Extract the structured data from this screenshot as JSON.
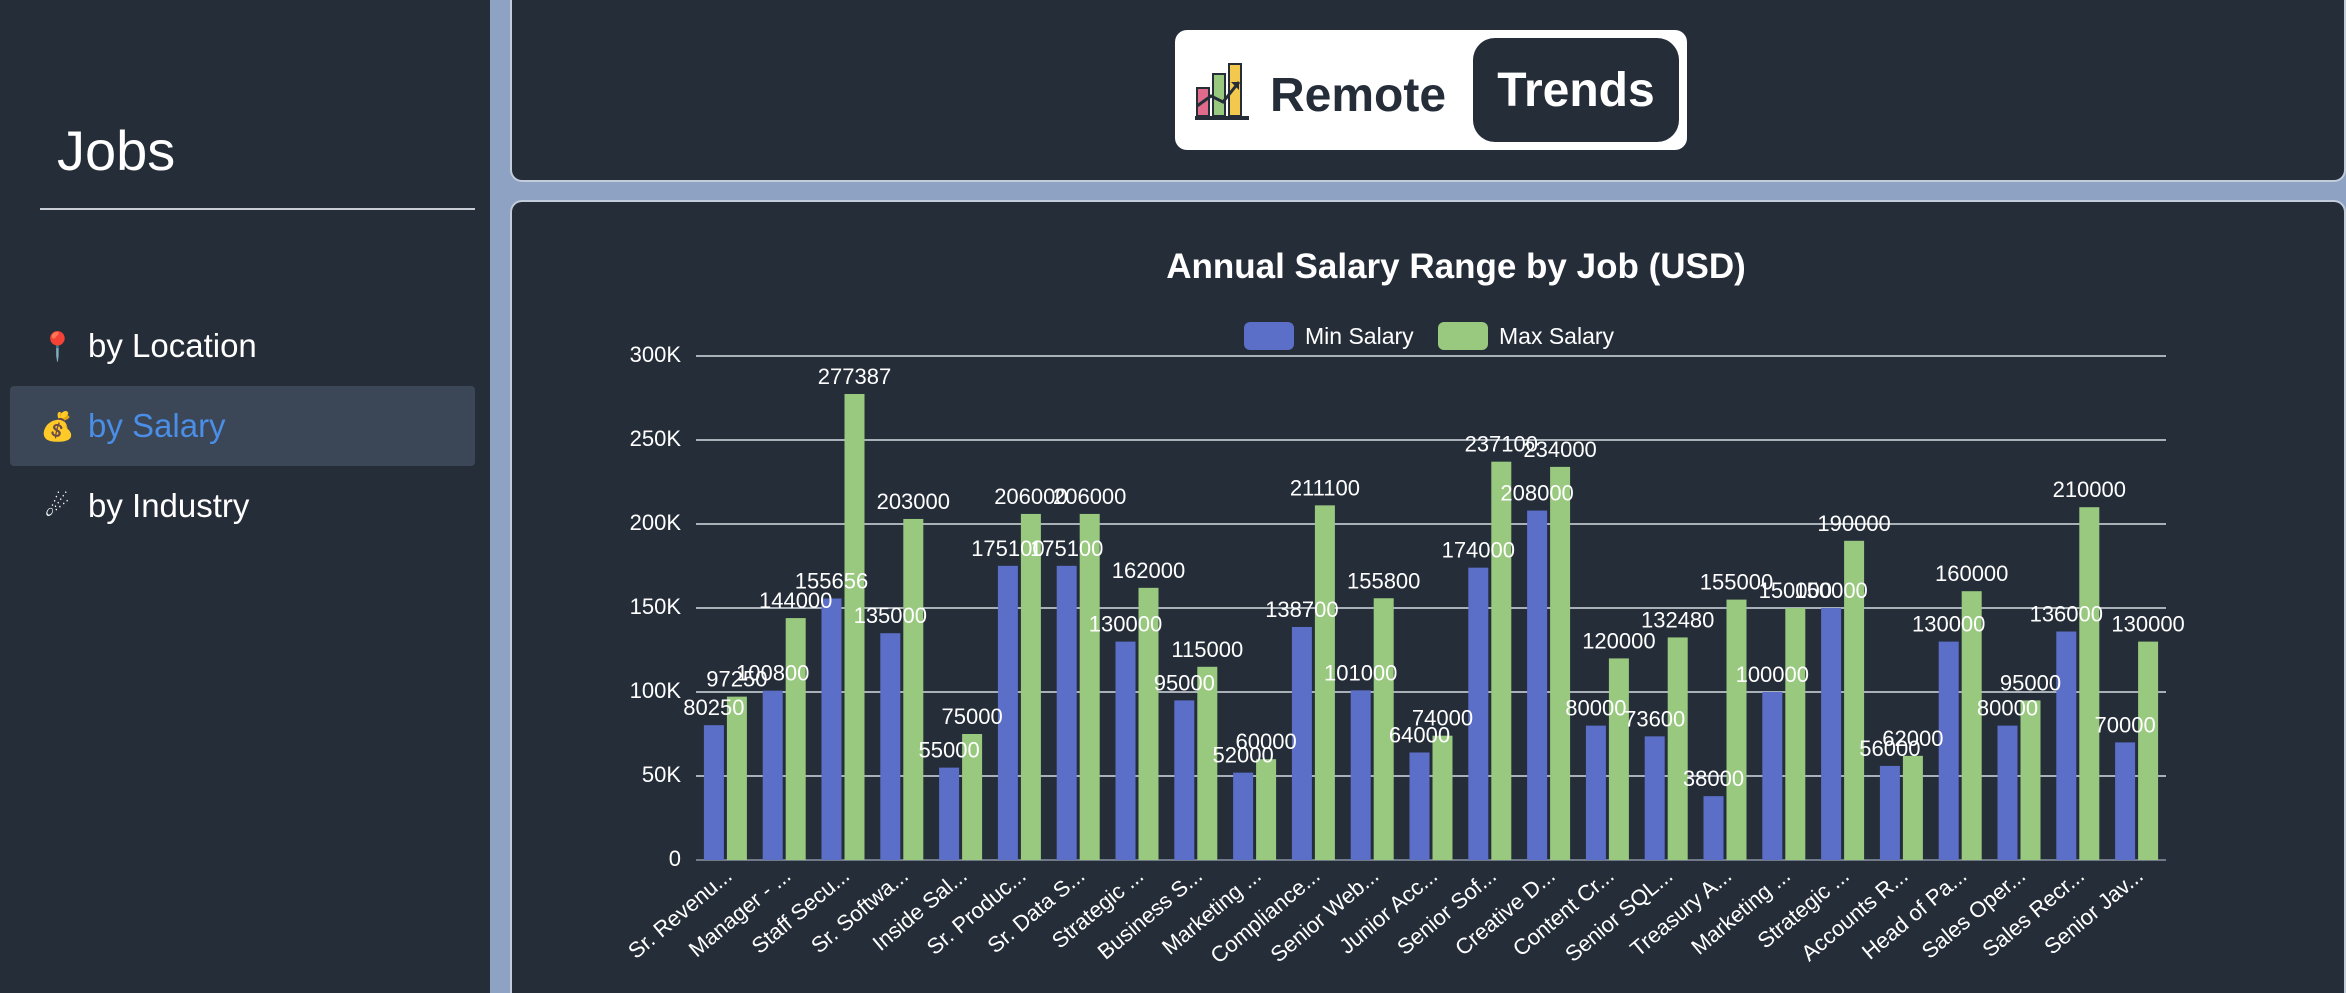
{
  "sidebar": {
    "title": "Jobs",
    "items": [
      {
        "icon": "📍",
        "icon_name": "pin-icon",
        "label": "by Location",
        "active": false
      },
      {
        "icon": "💰",
        "icon_name": "money-bag-icon",
        "label": "by Salary",
        "active": true
      },
      {
        "icon": "☄",
        "icon_name": "industry-icon",
        "label": "by Industry",
        "active": false
      }
    ]
  },
  "brand": {
    "logo_icon": "chart-logo-icon",
    "remote_label": "Remote",
    "trends_label": "Trends"
  },
  "colors": {
    "background": "#252d39",
    "min_salary": "#5b6ec8",
    "max_salary": "#98c97e",
    "active_nav": "#4a8ee6"
  },
  "chart_data": {
    "type": "bar",
    "title": "Annual Salary Range by Job (USD)",
    "xlabel": "",
    "ylabel": "",
    "ylim": [
      0,
      300000
    ],
    "y_ticks": [
      {
        "value": 0,
        "label": "0"
      },
      {
        "value": 50000,
        "label": "50K"
      },
      {
        "value": 100000,
        "label": "100K"
      },
      {
        "value": 150000,
        "label": "150K"
      },
      {
        "value": 200000,
        "label": "200K"
      },
      {
        "value": 250000,
        "label": "250K"
      },
      {
        "value": 300000,
        "label": "300K"
      }
    ],
    "grid": true,
    "legend": "top-center",
    "categories": [
      "Sr. Revenu...",
      "Manager - ...",
      "Staff Secu...",
      "Sr. Softwa...",
      "Inside Sal...",
      "Sr. Produc...",
      "Sr. Data S...",
      "Strategic ...",
      "Business S...",
      "Marketing ...",
      "Compliance...",
      "Senior Web...",
      "Junior Acc...",
      "Senior Sof...",
      "Creative D...",
      "Content Cr...",
      "Senior SQL...",
      "Treasury A...",
      "Marketing ...",
      "Strategic ...",
      "Accounts R...",
      "Head of Pa...",
      "Sales Oper...",
      "Sales Recr...",
      "Senior Jav..."
    ],
    "series": [
      {
        "name": "Min Salary",
        "color": "#5b6ec8",
        "values": [
          80250,
          100800,
          155656,
          135000,
          55000,
          175100,
          175100,
          130000,
          95000,
          52000,
          138700,
          101000,
          64000,
          174000,
          208000,
          80000,
          73600,
          38000,
          100000,
          150000,
          56000,
          130000,
          80000,
          136000,
          70000
        ]
      },
      {
        "name": "Max Salary",
        "color": "#98c97e",
        "values": [
          97250,
          144000,
          277387,
          203000,
          75000,
          206000,
          206000,
          162000,
          115000,
          60000,
          211100,
          155800,
          74000,
          237100,
          234000,
          120000,
          132480,
          155000,
          150000,
          190000,
          62000,
          160000,
          95000,
          210000,
          130000
        ]
      }
    ]
  }
}
